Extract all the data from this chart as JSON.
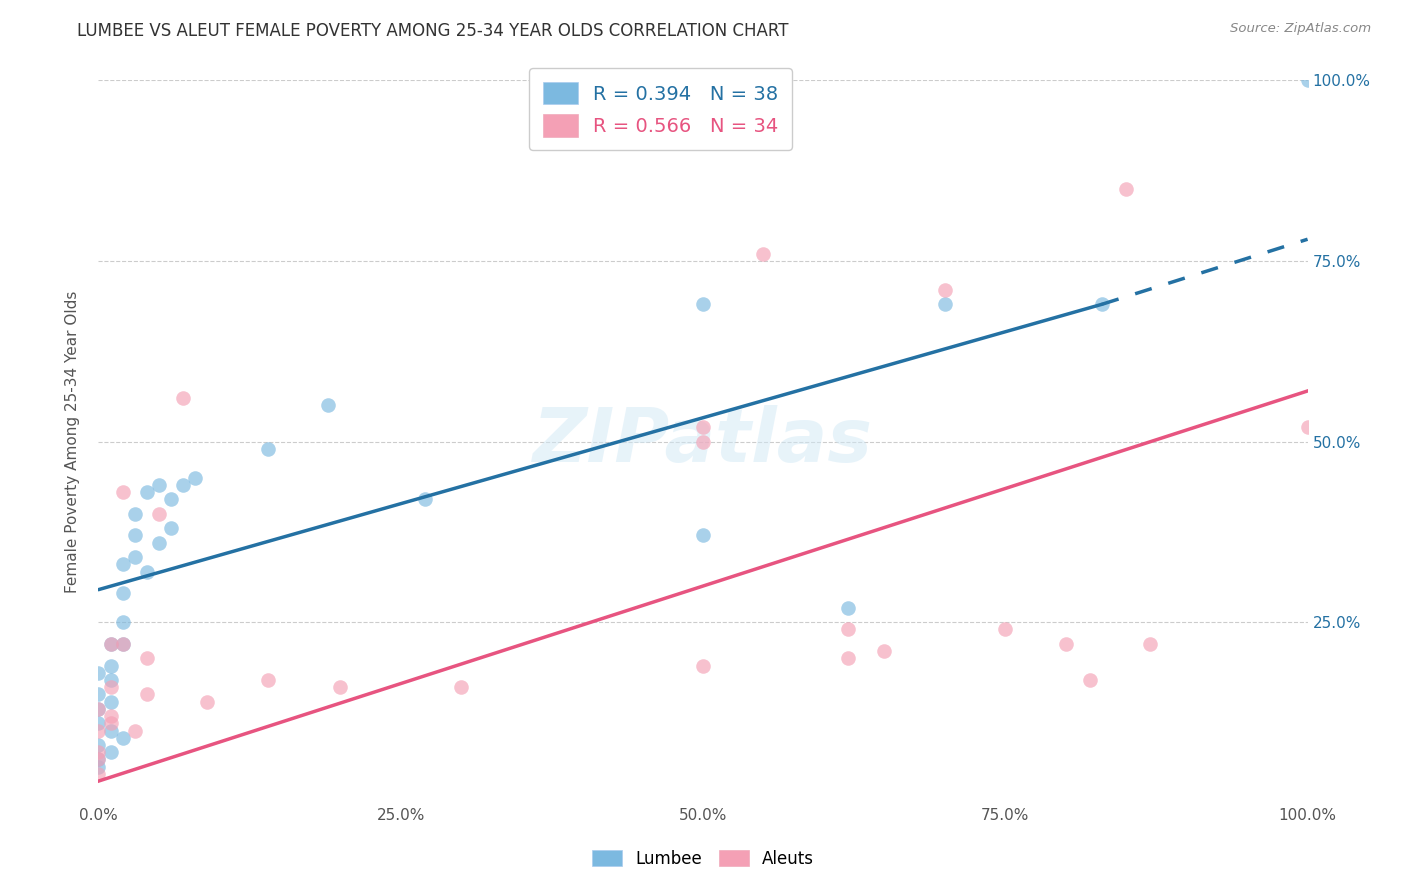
{
  "title": "LUMBEE VS ALEUT FEMALE POVERTY AMONG 25-34 YEAR OLDS CORRELATION CHART",
  "source": "Source: ZipAtlas.com",
  "ylabel": "Female Poverty Among 25-34 Year Olds",
  "xlim": [
    0,
    1.0
  ],
  "ylim": [
    0,
    1.0
  ],
  "xticks": [
    0.0,
    0.25,
    0.5,
    0.75,
    1.0
  ],
  "yticks": [
    0.0,
    0.25,
    0.5,
    0.75,
    1.0
  ],
  "xtick_labels": [
    "0.0%",
    "25.0%",
    "50.0%",
    "75.0%",
    "100.0%"
  ],
  "right_ytick_labels": [
    "",
    "25.0%",
    "50.0%",
    "75.0%",
    "100.0%"
  ],
  "lumbee_color": "#7cb9e0",
  "aleut_color": "#f4a0b5",
  "lumbee_line_color": "#2471a3",
  "aleut_line_color": "#e75480",
  "lumbee_R": 0.394,
  "lumbee_N": 38,
  "aleut_R": 0.566,
  "aleut_N": 34,
  "watermark": "ZIPatlas",
  "lumbee_x": [
    0.0,
    0.0,
    0.0,
    0.0,
    0.0,
    0.0,
    0.01,
    0.01,
    0.01,
    0.01,
    0.01,
    0.02,
    0.02,
    0.02,
    0.02,
    0.03,
    0.03,
    0.03,
    0.04,
    0.04,
    0.05,
    0.05,
    0.06,
    0.06,
    0.07,
    0.08,
    0.14,
    0.19,
    0.27,
    0.5,
    0.5,
    0.62,
    0.7,
    0.83,
    1.0,
    0.0,
    0.01,
    0.02
  ],
  "lumbee_y": [
    0.18,
    0.15,
    0.13,
    0.11,
    0.08,
    0.05,
    0.22,
    0.19,
    0.17,
    0.14,
    0.1,
    0.33,
    0.29,
    0.25,
    0.22,
    0.4,
    0.37,
    0.34,
    0.43,
    0.32,
    0.44,
    0.36,
    0.42,
    0.38,
    0.44,
    0.45,
    0.49,
    0.55,
    0.42,
    0.69,
    0.37,
    0.27,
    0.69,
    0.69,
    1.0,
    0.06,
    0.07,
    0.09
  ],
  "aleut_x": [
    0.0,
    0.0,
    0.0,
    0.0,
    0.01,
    0.01,
    0.01,
    0.02,
    0.02,
    0.03,
    0.04,
    0.04,
    0.05,
    0.07,
    0.09,
    0.14,
    0.2,
    0.3,
    0.5,
    0.55,
    0.62,
    0.62,
    0.65,
    0.7,
    0.75,
    0.8,
    0.82,
    0.85,
    0.87,
    1.0,
    0.0,
    0.01,
    0.5,
    0.5
  ],
  "aleut_y": [
    0.13,
    0.1,
    0.07,
    0.04,
    0.22,
    0.16,
    0.11,
    0.43,
    0.22,
    0.1,
    0.2,
    0.15,
    0.4,
    0.56,
    0.14,
    0.17,
    0.16,
    0.16,
    0.52,
    0.76,
    0.24,
    0.2,
    0.21,
    0.71,
    0.24,
    0.22,
    0.17,
    0.85,
    0.22,
    0.52,
    0.06,
    0.12,
    0.19,
    0.5
  ],
  "lumbee_line_x0": 0.0,
  "lumbee_line_x_solid_end": 0.83,
  "lumbee_line_x1": 1.0,
  "lumbee_line_y0": 0.295,
  "lumbee_line_y_at_solid_end": 0.69,
  "lumbee_line_y1": 0.78,
  "aleut_line_x0": 0.0,
  "aleut_line_x1": 1.0,
  "aleut_line_y0": 0.03,
  "aleut_line_y1": 0.57
}
